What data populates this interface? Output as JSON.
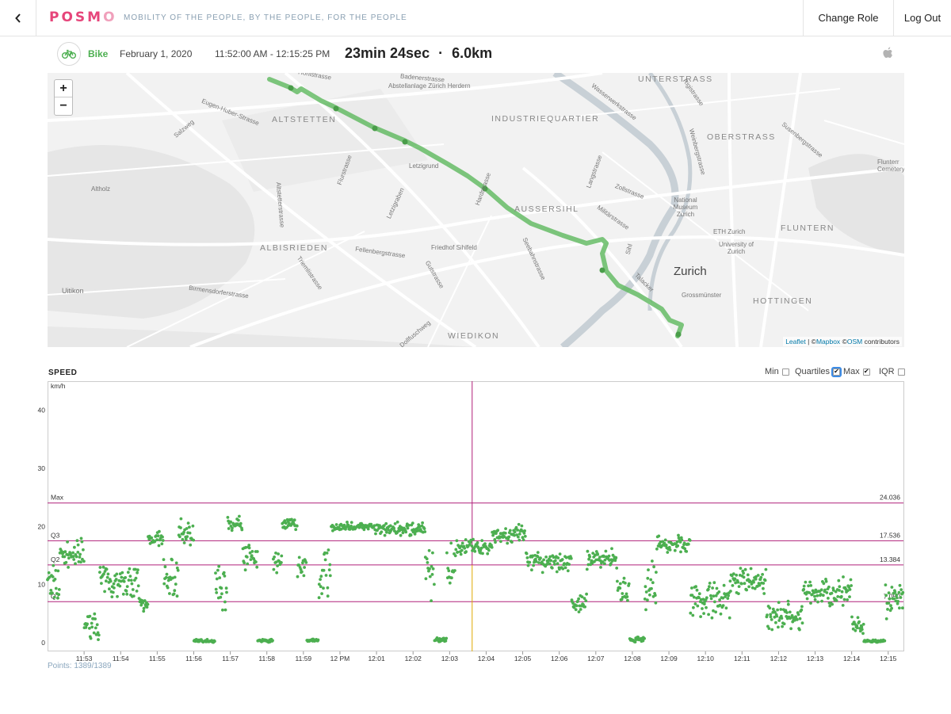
{
  "app": {
    "logo": "POSMO",
    "tagline": "MOBILITY OF THE PEOPLE, BY THE PEOPLE, FOR THE PEOPLE",
    "nav": {
      "change_role": "Change Role",
      "logout": "Log Out"
    },
    "icons": {
      "back": "chevron-left-icon",
      "mode": "bike-icon",
      "device": "apple-icon"
    }
  },
  "trip": {
    "mode": "Bike",
    "date": "February 1, 2020",
    "time_range": "11:52:00 AM - 12:15:25 PM",
    "duration": "23min 24sec",
    "separator": "·",
    "distance": "6.0km",
    "colors": {
      "mode": "#4caf50",
      "route": "#5cb85c"
    }
  },
  "map": {
    "zoom_in": "+",
    "zoom_out": "−",
    "attribution": {
      "leaflet": "Leaflet",
      "sep": "| ©",
      "mapbox": "Mapbox",
      "osm_prefix": "©",
      "osm": "OSM",
      "suffix": "contributors"
    },
    "districts": [
      "UNTERSTRASS",
      "INDUSTRIEQUARTIER",
      "OBERSTRASS",
      "ALTSTETTEN",
      "AUSSERSIHL",
      "ALBISRIEDEN",
      "FLUNTERN",
      "HOTTINGEN",
      "WIEDIKON"
    ],
    "city": "Zurich",
    "streets": [
      "Hohlstrasse",
      "Abstellanlage Zürich Herdern",
      "Eugen-Huber-Strasse",
      "Salzweg",
      "Letzigrund",
      "Altholz",
      "Altstetterstrasse",
      "Flurstrasse",
      "Letzigraben",
      "Hardstrasse",
      "Langstrasse",
      "Zollstrasse",
      "National Museum Zurich",
      "Militärstrasse",
      "Sihl",
      "ETH Zurich",
      "University of Zurich",
      "Fellenbergstrasse",
      "Friedhof Sihlfeld",
      "Birmensdorferstrasse",
      "Uitikon",
      "Triemlistrasse",
      "Gutstrasse",
      "Grossmünster",
      "Flunterr Cemetery",
      "Wasserwerkstrasse",
      "Weinbergstrasse",
      "Seebahnstrasse",
      "Badenerstrasse",
      "Talacker",
      "Dollfuschweg",
      "Rigistrasse",
      "Susenbergstrasse"
    ]
  },
  "speed": {
    "title": "SPEED",
    "toggles": [
      {
        "label": "Min",
        "checked": false
      },
      {
        "label": "Quartiles",
        "checked": true
      },
      {
        "label": "Max",
        "checked": true
      },
      {
        "label": "IQR",
        "checked": false
      }
    ],
    "points_text": "Points: 1389/1389"
  },
  "chart_data": {
    "type": "scatter",
    "ylabel": "km/h",
    "ylim": [
      -1.5,
      45
    ],
    "yticks": [
      0,
      10,
      20,
      30,
      40
    ],
    "xticks": [
      "11:53",
      "11:54",
      "11:55",
      "11:56",
      "11:57",
      "11:58",
      "11:59",
      "12 PM",
      "12:01",
      "12:02",
      "12:03",
      "12:04",
      "12:05",
      "12:06",
      "12:07",
      "12:08",
      "12:09",
      "12:10",
      "12:11",
      "12:12",
      "12:13",
      "12:14",
      "12:15"
    ],
    "x_start": "11:52:00",
    "x_end": "12:15:25",
    "reference_lines": [
      {
        "label": "Max",
        "value": 24.036,
        "value_text": "24.036"
      },
      {
        "label": "Q3",
        "value": 17.536,
        "value_text": "17.536"
      },
      {
        "label": "Q2",
        "value": 13.384,
        "value_text": "13.384"
      },
      {
        "label": "Q1",
        "value": 7.05,
        "value_text": "7.050"
      }
    ],
    "cursor_time": "12:03:37",
    "colors": {
      "points": "#4caf50",
      "lines": "#b0207a",
      "cursor": "#b0207a",
      "cursor_lower": "#e0a800"
    },
    "series": [
      {
        "name": "speed",
        "segments": [
          {
            "from": "11:52:00",
            "to": "11:52:20",
            "level": 10,
            "spread": 4
          },
          {
            "from": "11:52:20",
            "to": "11:53:00",
            "level": 15,
            "spread": 3
          },
          {
            "from": "11:53:00",
            "to": "11:53:25",
            "level": 3,
            "spread": 2.5
          },
          {
            "from": "11:53:25",
            "to": "11:54:30",
            "level": 10.5,
            "spread": 3
          },
          {
            "from": "11:54:30",
            "to": "11:54:45",
            "level": 6.5,
            "spread": 1.5
          },
          {
            "from": "11:54:45",
            "to": "11:55:10",
            "level": 18,
            "spread": 1.5
          },
          {
            "from": "11:55:10",
            "to": "11:55:35",
            "level": 11,
            "spread": 4
          },
          {
            "from": "11:55:35",
            "to": "11:56:00",
            "level": 19,
            "spread": 2.5
          },
          {
            "from": "11:56:00",
            "to": "11:56:35",
            "level": 0.3,
            "spread": 0.3
          },
          {
            "from": "11:56:35",
            "to": "11:56:55",
            "level": 10,
            "spread": 5
          },
          {
            "from": "11:56:55",
            "to": "11:57:20",
            "level": 20.5,
            "spread": 1.5
          },
          {
            "from": "11:57:20",
            "to": "11:57:45",
            "level": 15,
            "spread": 3
          },
          {
            "from": "11:57:45",
            "to": "11:58:10",
            "level": 0.3,
            "spread": 0.3
          },
          {
            "from": "11:58:10",
            "to": "11:58:25",
            "level": 14,
            "spread": 3
          },
          {
            "from": "11:58:25",
            "to": "11:58:50",
            "level": 20.5,
            "spread": 1.2
          },
          {
            "from": "11:58:50",
            "to": "11:59:05",
            "level": 13,
            "spread": 4
          },
          {
            "from": "11:59:05",
            "to": "11:59:25",
            "level": 0.4,
            "spread": 0.3
          },
          {
            "from": "11:59:25",
            "to": "11:59:45",
            "level": 11,
            "spread": 6
          },
          {
            "from": "11:59:45",
            "to": "12:00:55",
            "level": 20,
            "spread": 0.8
          },
          {
            "from": "12:00:55",
            "to": "12:02:20",
            "level": 19.5,
            "spread": 1.3
          },
          {
            "from": "12:02:20",
            "to": "12:02:35",
            "level": 12,
            "spread": 6
          },
          {
            "from": "12:02:35",
            "to": "12:02:55",
            "level": 0.5,
            "spread": 0.4
          },
          {
            "from": "12:02:55",
            "to": "12:03:10",
            "level": 14,
            "spread": 4
          },
          {
            "from": "12:03:10",
            "to": "12:04:10",
            "level": 16.5,
            "spread": 1.5
          },
          {
            "from": "12:04:10",
            "to": "12:05:05",
            "level": 18.5,
            "spread": 2
          },
          {
            "from": "12:05:05",
            "to": "12:06:20",
            "level": 14,
            "spread": 2
          },
          {
            "from": "12:06:20",
            "to": "12:06:45",
            "level": 6.5,
            "spread": 2
          },
          {
            "from": "12:06:45",
            "to": "12:07:35",
            "level": 14.5,
            "spread": 2
          },
          {
            "from": "12:07:35",
            "to": "12:07:55",
            "level": 9,
            "spread": 3
          },
          {
            "from": "12:07:55",
            "to": "12:08:20",
            "level": 0.5,
            "spread": 0.5
          },
          {
            "from": "12:08:20",
            "to": "12:08:40",
            "level": 10,
            "spread": 5
          },
          {
            "from": "12:08:40",
            "to": "12:09:35",
            "level": 17,
            "spread": 2
          },
          {
            "from": "12:09:35",
            "to": "12:10:40",
            "level": 7.5,
            "spread": 3.5
          },
          {
            "from": "12:10:40",
            "to": "12:11:40",
            "level": 10.5,
            "spread": 2.5
          },
          {
            "from": "12:11:40",
            "to": "12:12:40",
            "level": 4.5,
            "spread": 3
          },
          {
            "from": "12:12:40",
            "to": "12:14:00",
            "level": 8.5,
            "spread": 3
          },
          {
            "from": "12:14:00",
            "to": "12:14:20",
            "level": 3,
            "spread": 2
          },
          {
            "from": "12:14:20",
            "to": "12:14:55",
            "level": 0.3,
            "spread": 0.3
          },
          {
            "from": "12:14:55",
            "to": "12:15:25",
            "level": 7,
            "spread": 3.5
          }
        ]
      }
    ]
  }
}
